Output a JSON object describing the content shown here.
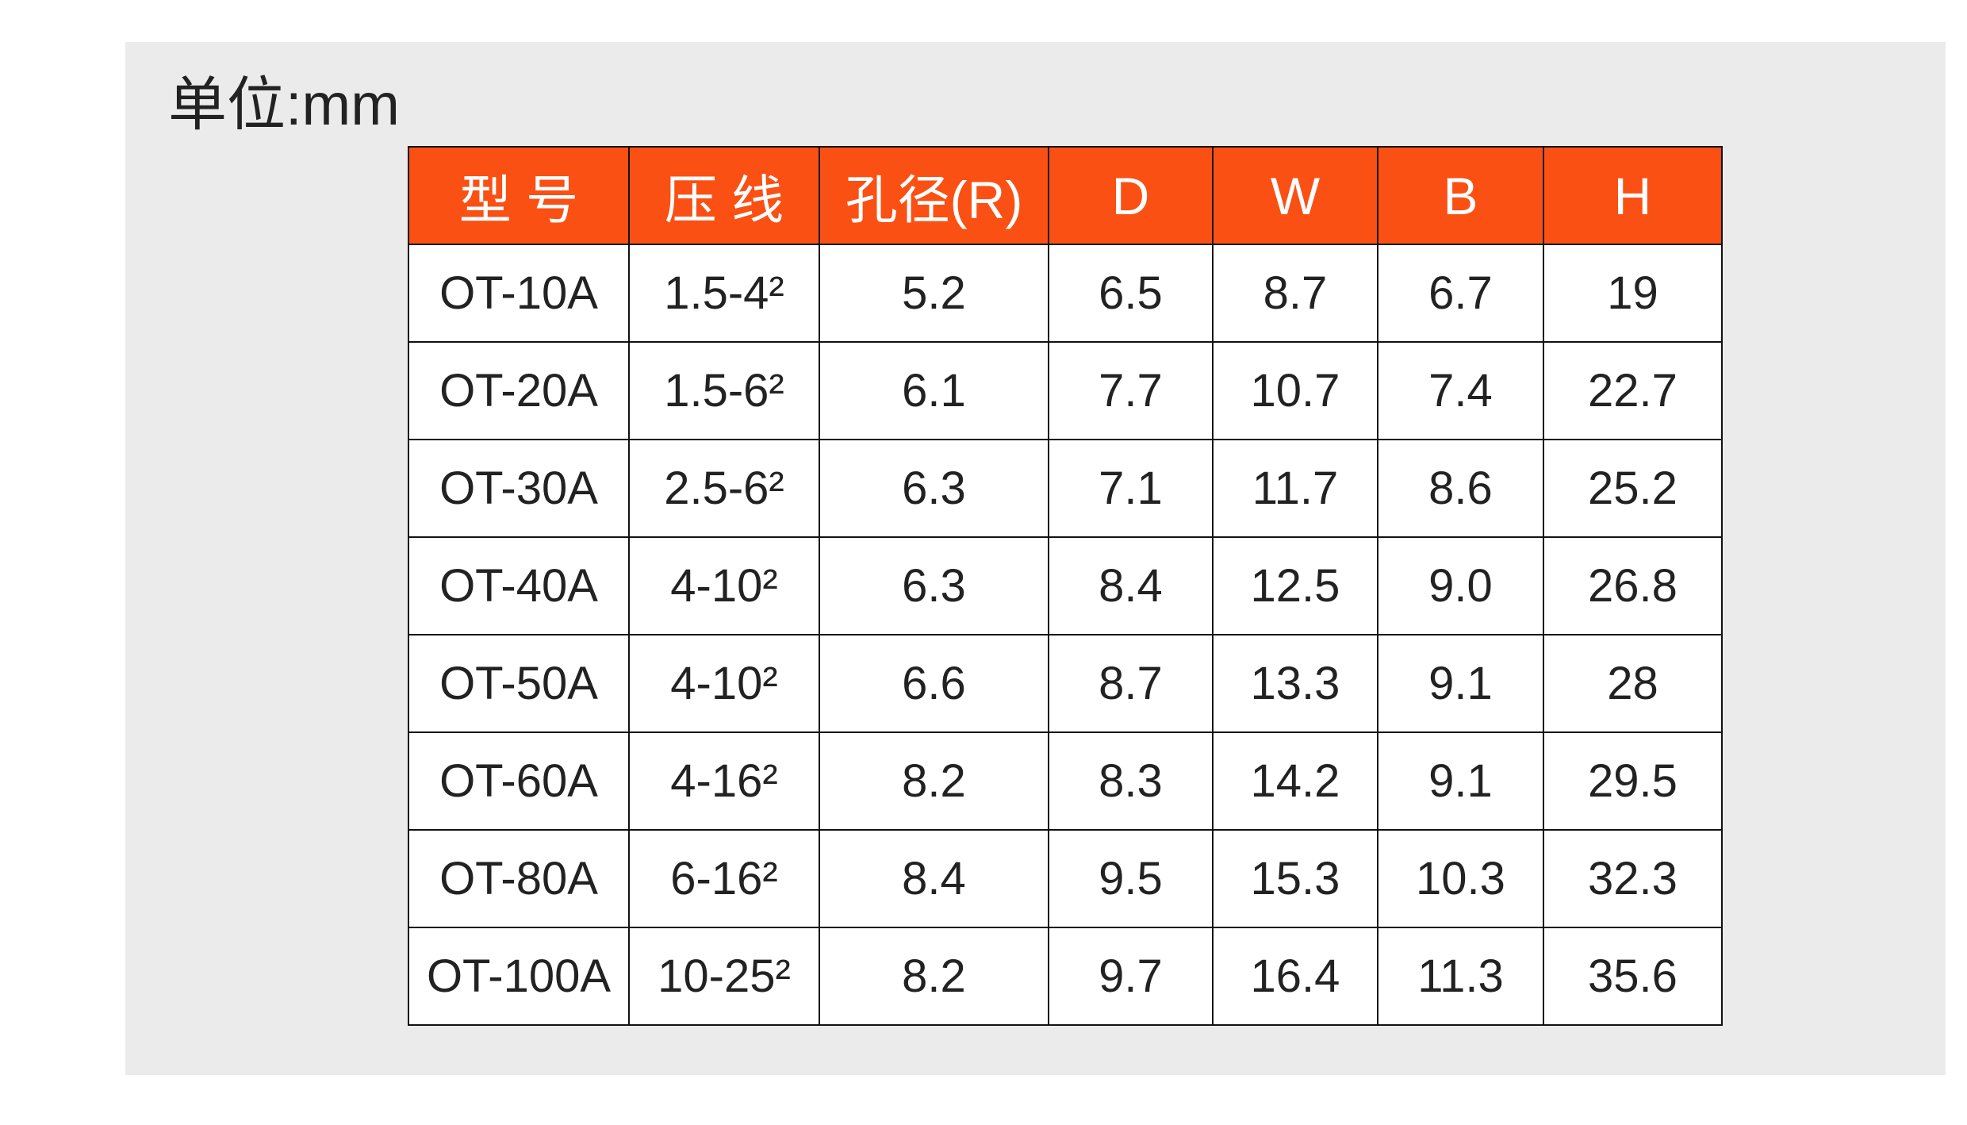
{
  "header": {
    "title": "单位:mm"
  },
  "table": {
    "columns": [
      "型 号",
      "压 线",
      "孔径(R)",
      "D",
      "W",
      "B",
      "H"
    ],
    "rows": [
      [
        "OT-10A",
        "1.5-4²",
        "5.2",
        "6.5",
        "8.7",
        "6.7",
        "19"
      ],
      [
        "OT-20A",
        "1.5-6²",
        "6.1",
        "7.7",
        "10.7",
        "7.4",
        "22.7"
      ],
      [
        "OT-30A",
        "2.5-6²",
        "6.3",
        "7.1",
        "11.7",
        "8.6",
        "25.2"
      ],
      [
        "OT-40A",
        "4-10²",
        "6.3",
        "8.4",
        "12.5",
        "9.0",
        "26.8"
      ],
      [
        "OT-50A",
        "4-10²",
        "6.6",
        "8.7",
        "13.3",
        "9.1",
        "28"
      ],
      [
        "OT-60A",
        "4-16²",
        "8.2",
        "8.3",
        "14.2",
        "9.1",
        "29.5"
      ],
      [
        "OT-80A",
        "6-16²",
        "8.4",
        "9.5",
        "15.3",
        "10.3",
        "32.3"
      ],
      [
        "OT-100A",
        "10-25²",
        "8.2",
        "9.7",
        "16.4",
        "11.3",
        "35.6"
      ]
    ]
  }
}
